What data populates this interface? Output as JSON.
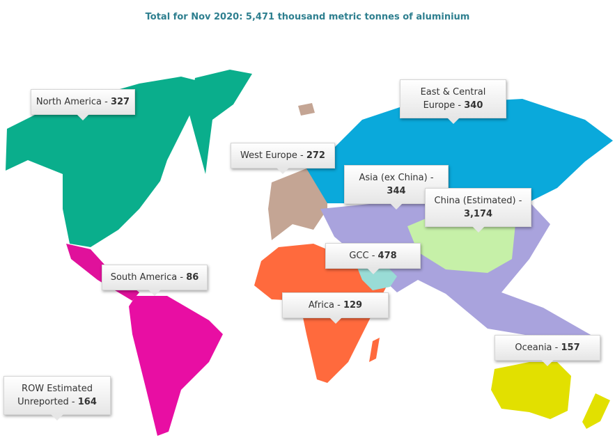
{
  "title": "Total for Nov 2020: 5,471 thousand metric tonnes of aluminium",
  "separator": " - ",
  "regions": [
    {
      "name": "North America",
      "value": "327"
    },
    {
      "name": "East & Central Europe",
      "value": "340"
    },
    {
      "name": "West Europe",
      "value": "272"
    },
    {
      "name": "Asia (ex China)",
      "value": "344"
    },
    {
      "name": "China (Estimated)",
      "value": "3,174"
    },
    {
      "name": "GCC",
      "value": "478"
    },
    {
      "name": "South America",
      "value": "86"
    },
    {
      "name": "Africa",
      "value": "129"
    },
    {
      "name": "Oceania",
      "value": "157"
    },
    {
      "name": "ROW Estimated Unreported",
      "value": "164"
    }
  ]
}
